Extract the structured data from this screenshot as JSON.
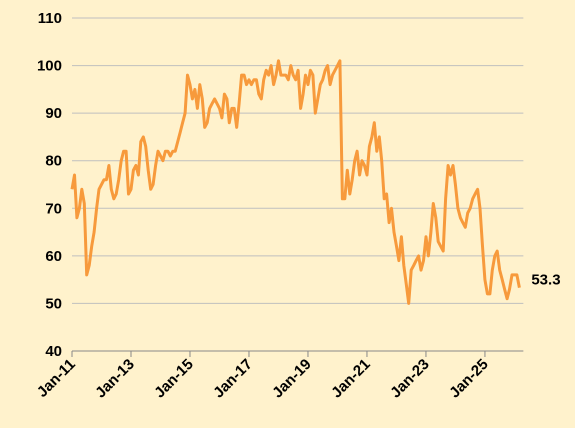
{
  "chart_data": {
    "type": "line",
    "categories": [
      "Jan-11",
      null,
      null,
      null,
      null,
      null,
      null,
      null,
      null,
      null,
      null,
      null,
      null,
      null,
      null,
      null,
      null,
      null,
      null,
      null,
      null,
      null,
      null,
      null,
      "Jan-13",
      null,
      null,
      null,
      null,
      null,
      null,
      null,
      null,
      null,
      null,
      null,
      null,
      null,
      null,
      null,
      null,
      null,
      null,
      null,
      null,
      null,
      null,
      null,
      "Jan-15",
      null,
      null,
      null,
      null,
      null,
      null,
      null,
      null,
      null,
      null,
      null,
      null,
      null,
      null,
      null,
      null,
      null,
      null,
      null,
      null,
      null,
      null,
      null,
      "Jan-17",
      null,
      null,
      null,
      null,
      null,
      null,
      null,
      null,
      null,
      null,
      null,
      null,
      null,
      null,
      null,
      null,
      null,
      null,
      null,
      null,
      null,
      null,
      null,
      "Jan-19",
      null,
      null,
      null,
      null,
      null,
      null,
      null,
      null,
      null,
      null,
      null,
      null,
      null,
      null,
      null,
      null,
      null,
      null,
      null,
      null,
      null,
      null,
      null,
      "Jan-21",
      null,
      null,
      null,
      null,
      null,
      null,
      null,
      null,
      null,
      null,
      null,
      null,
      null,
      null,
      null,
      null,
      null,
      null,
      null,
      null,
      null,
      null,
      null,
      "Jan-23",
      null,
      null,
      null,
      null,
      null,
      null,
      null,
      null,
      null,
      null,
      null,
      null,
      null,
      null,
      null,
      null,
      null,
      null,
      null,
      null,
      null,
      null,
      null,
      "Jan-25",
      null,
      null,
      null,
      null,
      null,
      null,
      null,
      null,
      null,
      null,
      null,
      null,
      null,
      null
    ],
    "series": [
      {
        "color": "#f79a3c",
        "values": [
          74,
          77,
          68,
          70,
          74,
          71,
          56,
          58,
          62,
          65,
          70,
          74,
          75,
          76,
          76,
          79,
          74,
          72,
          73,
          76,
          80,
          82,
          82,
          73,
          74,
          78,
          79,
          77,
          84,
          85,
          83,
          78,
          74,
          75,
          79,
          82,
          81,
          80,
          82,
          82,
          81,
          82,
          82,
          84,
          86,
          88,
          90,
          98,
          96,
          93,
          95,
          91,
          96,
          93,
          87,
          88,
          91,
          92,
          93,
          92,
          91,
          89,
          94,
          93,
          88,
          91,
          91,
          87,
          92,
          98,
          98,
          96,
          97,
          96,
          97,
          97,
          94,
          93,
          97,
          99,
          98,
          100,
          96,
          98,
          101,
          98,
          98,
          98,
          97,
          100,
          98,
          97,
          99,
          91,
          94,
          98,
          96,
          99,
          98,
          90,
          93,
          96,
          97,
          99,
          100,
          96,
          98,
          99,
          100,
          101,
          72,
          72,
          78,
          73,
          76,
          80,
          82,
          77,
          80,
          79,
          77,
          83,
          85,
          88,
          82,
          85,
          80,
          72,
          73,
          67,
          70,
          65,
          62,
          59,
          64,
          58,
          54,
          50,
          57,
          58,
          59,
          60,
          57,
          59,
          64,
          60,
          65,
          71,
          68,
          63,
          62,
          61,
          72,
          79,
          77,
          79,
          75,
          70,
          68,
          67,
          66,
          69,
          70,
          72,
          73,
          74,
          70,
          62,
          55,
          52,
          52,
          57,
          60,
          61,
          57,
          55,
          53,
          51,
          53,
          56,
          56,
          56,
          53.3
        ]
      }
    ],
    "ylim": [
      40,
      110
    ],
    "yticks": [
      40,
      50,
      60,
      70,
      80,
      90,
      100,
      110
    ],
    "grid": true
  }
}
